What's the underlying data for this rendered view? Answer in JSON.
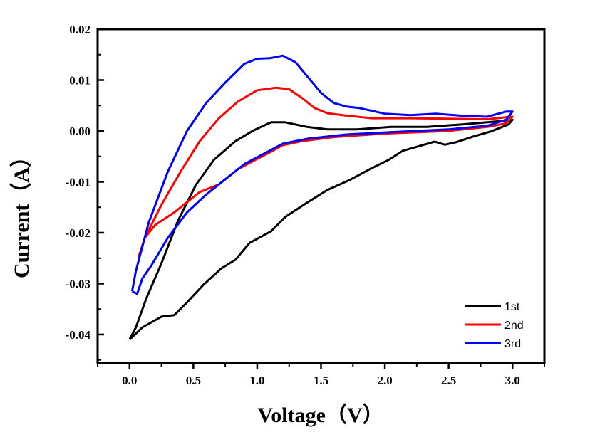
{
  "chart_data": {
    "type": "line",
    "title": "",
    "xlabel": "Voltage（V）",
    "ylabel": "Current（A）",
    "xlim": [
      -0.25,
      3.25
    ],
    "ylim": [
      -0.0456,
      0.02
    ],
    "xticks": [
      0.0,
      0.5,
      1.0,
      1.5,
      2.0,
      2.5,
      3.0
    ],
    "xtick_labels": [
      "0.0",
      "0.5",
      "1.0",
      "1.5",
      "2.0",
      "2.5",
      "3.0"
    ],
    "yticks": [
      0.02,
      0.01,
      0.0,
      -0.01,
      -0.02,
      -0.03,
      -0.04
    ],
    "ytick_labels": [
      "0.02",
      "0.01",
      "0.00",
      "-0.01",
      "-0.02",
      "-0.03",
      "-0.04"
    ],
    "grid": false,
    "legend_position": "bottom-right",
    "series": [
      {
        "name": "1st",
        "color": "#000000",
        "points": [
          [
            0.0,
            -0.041
          ],
          [
            0.1,
            -0.0386
          ],
          [
            0.25,
            -0.0365
          ],
          [
            0.35,
            -0.0362
          ],
          [
            0.45,
            -0.0337
          ],
          [
            0.58,
            -0.0302
          ],
          [
            0.72,
            -0.027
          ],
          [
            0.83,
            -0.0253
          ],
          [
            0.94,
            -0.022
          ],
          [
            1.11,
            -0.0197
          ],
          [
            1.22,
            -0.0169
          ],
          [
            1.39,
            -0.0141
          ],
          [
            1.55,
            -0.0116
          ],
          [
            1.72,
            -0.0097
          ],
          [
            1.89,
            -0.0074
          ],
          [
            2.03,
            -0.0057
          ],
          [
            2.14,
            -0.0039
          ],
          [
            2.28,
            -0.0029
          ],
          [
            2.39,
            -0.0021
          ],
          [
            2.47,
            -0.0027
          ],
          [
            2.56,
            -0.0022
          ],
          [
            2.69,
            -0.0011
          ],
          [
            2.83,
            -0.0001
          ],
          [
            2.97,
            0.0013
          ],
          [
            3.0,
            0.0022
          ],
          [
            2.89,
            0.0019
          ],
          [
            2.61,
            0.0013
          ],
          [
            2.33,
            0.0008
          ],
          [
            2.05,
            0.0008
          ],
          [
            1.78,
            0.0003
          ],
          [
            1.55,
            0.0003
          ],
          [
            1.39,
            0.0008
          ],
          [
            1.22,
            0.0017
          ],
          [
            1.11,
            0.0017
          ],
          [
            0.97,
            0.0001
          ],
          [
            0.83,
            -0.002
          ],
          [
            0.66,
            -0.0057
          ],
          [
            0.52,
            -0.0106
          ],
          [
            0.38,
            -0.0176
          ],
          [
            0.25,
            -0.026
          ],
          [
            0.13,
            -0.033
          ],
          [
            0.05,
            -0.0386
          ],
          [
            0.0,
            -0.041
          ]
        ]
      },
      {
        "name": "2nd",
        "color": "#ff0000",
        "points": [
          [
            0.07,
            -0.0248
          ],
          [
            0.12,
            -0.021
          ],
          [
            0.2,
            -0.0185
          ],
          [
            0.35,
            -0.016
          ],
          [
            0.45,
            -0.014
          ],
          [
            0.55,
            -0.012
          ],
          [
            0.7,
            -0.0105
          ],
          [
            0.85,
            -0.0075
          ],
          [
            1.0,
            -0.0055
          ],
          [
            1.1,
            -0.0042
          ],
          [
            1.2,
            -0.0028
          ],
          [
            1.35,
            -0.002
          ],
          [
            1.6,
            -0.0012
          ],
          [
            2.0,
            -0.0005
          ],
          [
            2.5,
            0.0
          ],
          [
            2.8,
            0.0008
          ],
          [
            2.95,
            0.0015
          ],
          [
            3.0,
            0.0028
          ],
          [
            2.95,
            0.0027
          ],
          [
            2.8,
            0.0023
          ],
          [
            2.5,
            0.0024
          ],
          [
            2.2,
            0.0025
          ],
          [
            1.9,
            0.0025
          ],
          [
            1.7,
            0.003
          ],
          [
            1.55,
            0.0035
          ],
          [
            1.45,
            0.0045
          ],
          [
            1.35,
            0.0065
          ],
          [
            1.25,
            0.0082
          ],
          [
            1.15,
            0.0085
          ],
          [
            1.0,
            0.008
          ],
          [
            0.85,
            0.0058
          ],
          [
            0.7,
            0.0025
          ],
          [
            0.55,
            -0.002
          ],
          [
            0.4,
            -0.008
          ],
          [
            0.25,
            -0.0145
          ],
          [
            0.12,
            -0.021
          ],
          [
            0.07,
            -0.0248
          ]
        ]
      },
      {
        "name": "3rd",
        "color": "#0000ff",
        "points": [
          [
            0.02,
            -0.0315
          ],
          [
            0.06,
            -0.032
          ],
          [
            0.1,
            -0.029
          ],
          [
            0.17,
            -0.0265
          ],
          [
            0.3,
            -0.021
          ],
          [
            0.45,
            -0.016
          ],
          [
            0.6,
            -0.0125
          ],
          [
            0.75,
            -0.0095
          ],
          [
            0.9,
            -0.0065
          ],
          [
            1.05,
            -0.0045
          ],
          [
            1.2,
            -0.0025
          ],
          [
            1.4,
            -0.0015
          ],
          [
            1.7,
            -0.0007
          ],
          [
            2.0,
            -0.0003
          ],
          [
            2.5,
            0.0003
          ],
          [
            2.8,
            0.001
          ],
          [
            2.95,
            0.0022
          ],
          [
            3.0,
            0.0038
          ],
          [
            2.95,
            0.0038
          ],
          [
            2.8,
            0.0028
          ],
          [
            2.6,
            0.003
          ],
          [
            2.4,
            0.0034
          ],
          [
            2.2,
            0.0031
          ],
          [
            2.0,
            0.0034
          ],
          [
            1.8,
            0.0045
          ],
          [
            1.7,
            0.0048
          ],
          [
            1.6,
            0.0055
          ],
          [
            1.5,
            0.0075
          ],
          [
            1.4,
            0.0105
          ],
          [
            1.3,
            0.0135
          ],
          [
            1.2,
            0.0148
          ],
          [
            1.1,
            0.0143
          ],
          [
            1.0,
            0.0142
          ],
          [
            0.9,
            0.0132
          ],
          [
            0.75,
            0.0095
          ],
          [
            0.6,
            0.0055
          ],
          [
            0.45,
            0.0
          ],
          [
            0.3,
            -0.008
          ],
          [
            0.15,
            -0.018
          ],
          [
            0.05,
            -0.0275
          ],
          [
            0.02,
            -0.0315
          ]
        ]
      }
    ]
  }
}
